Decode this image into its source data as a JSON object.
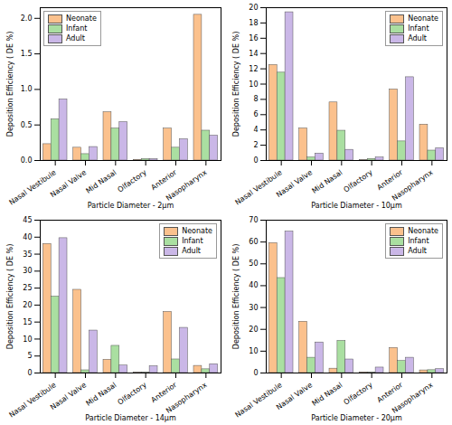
{
  "chart_data": [
    {
      "type": "bar",
      "x_label": "Particle Diameter - 2μm",
      "y_label": "Deposition Efficiency ( DE %)",
      "categories": [
        "Nasal Vestibule",
        "Nasal Valve",
        "Mid Nasal",
        "Olfactory",
        "Anterior",
        "Nasopharynx"
      ],
      "series": [
        {
          "name": "Neonate",
          "color": "#fbc18d",
          "values": [
            0.23,
            0.18,
            0.68,
            0.01,
            0.45,
            2.05
          ]
        },
        {
          "name": "Infant",
          "color": "#aadfa1",
          "values": [
            0.58,
            0.09,
            0.45,
            0.02,
            0.18,
            0.42
          ]
        },
        {
          "name": "Adult",
          "color": "#cab7e7",
          "values": [
            0.86,
            0.19,
            0.54,
            0.02,
            0.3,
            0.35
          ]
        }
      ],
      "ylim": [
        0,
        2.15
      ],
      "yticks": [
        {
          "value": 0,
          "label": "0.0"
        },
        {
          "value": 0.5,
          "label": "0.5"
        },
        {
          "value": 1,
          "label": "1.0"
        },
        {
          "value": 1.5,
          "label": "1.5"
        },
        {
          "value": 2,
          "label": "2.0"
        }
      ],
      "legend": "upper left"
    },
    {
      "type": "bar",
      "x_label": "Particle Diameter - 10μm",
      "y_label": "Deposition Efficiency ( DE %)",
      "categories": [
        "Nasal Vestibule",
        "Nasal Valve",
        "Mid Nasal",
        "Olfactory",
        "Anterior",
        "Nasopharynx"
      ],
      "series": [
        {
          "name": "Neonate",
          "color": "#fbc18d",
          "values": [
            12.5,
            4.2,
            7.6,
            0.05,
            9.3,
            4.7
          ]
        },
        {
          "name": "Infant",
          "color": "#aadfa1",
          "values": [
            11.5,
            0.4,
            3.9,
            0.2,
            2.5,
            1.3
          ]
        },
        {
          "name": "Adult",
          "color": "#cab7e7",
          "values": [
            19.4,
            0.9,
            1.4,
            0.4,
            10.9,
            1.6
          ]
        }
      ],
      "ylim": [
        0,
        20
      ],
      "yticks": [
        0,
        2,
        4,
        6,
        8,
        10,
        12,
        14,
        16,
        18,
        20
      ],
      "legend": "upper right"
    },
    {
      "type": "bar",
      "x_label": "Particle Diameter - 14μm",
      "y_label": "Deposition Efficiency ( DE %)",
      "categories": [
        "Nasal Vestibule",
        "Nasal Valve",
        "Mid Nasal",
        "Olfactory",
        "Anterior",
        "Nasopharynx"
      ],
      "series": [
        {
          "name": "Neonate",
          "color": "#fbc18d",
          "values": [
            38,
            24.5,
            3.9,
            0.1,
            18,
            2.1
          ]
        },
        {
          "name": "Infant",
          "color": "#aadfa1",
          "values": [
            22.5,
            0.8,
            8,
            0.1,
            4,
            1.1
          ]
        },
        {
          "name": "Adult",
          "color": "#cab7e7",
          "values": [
            39.7,
            12.5,
            2.2,
            2,
            13.3,
            2.6
          ]
        }
      ],
      "ylim": [
        0,
        45
      ],
      "yticks": [
        0,
        5,
        10,
        15,
        20,
        25,
        30,
        35,
        40,
        45
      ],
      "legend": "upper right"
    },
    {
      "type": "bar",
      "x_label": "Particle Diameter - 20μm",
      "y_label": "Deposition Efficiency ( DE %)",
      "categories": [
        "Nasal Vestibule",
        "Nasal Valve",
        "Mid Nasal",
        "Olfactory",
        "Anterior",
        "Nasopharynx"
      ],
      "series": [
        {
          "name": "Neonate",
          "color": "#fbc18d",
          "values": [
            59.5,
            23.5,
            2,
            0.3,
            11.5,
            1.2
          ]
        },
        {
          "name": "Infant",
          "color": "#aadfa1",
          "values": [
            43.5,
            7,
            14.7,
            0.2,
            5.5,
            1.3
          ]
        },
        {
          "name": "Adult",
          "color": "#cab7e7",
          "values": [
            64.8,
            14,
            6.2,
            2.5,
            7,
            1.8
          ]
        }
      ],
      "ylim": [
        0,
        70
      ],
      "yticks": [
        0,
        10,
        20,
        30,
        40,
        50,
        60,
        70
      ],
      "legend": "upper right"
    }
  ]
}
